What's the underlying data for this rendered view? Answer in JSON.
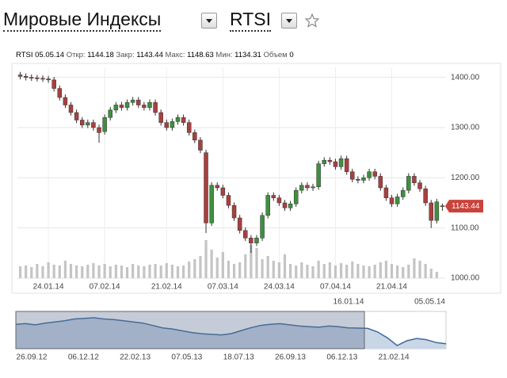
{
  "header": {
    "group": "Мировые Индексы",
    "symbol": "RTSI"
  },
  "chart_data": {
    "type": "candlestick",
    "info": {
      "symbol": "RTSI",
      "date": "05.05.14",
      "open_label": "Откр:",
      "close_label": "Закр:",
      "high_label": "Макс:",
      "low_label": "Мин:",
      "volume_label": "Объем"
    },
    "categories": [
      null,
      null,
      null,
      null,
      null,
      "24.01.14",
      null,
      null,
      null,
      null,
      null,
      null,
      null,
      null,
      null,
      "07.02.14",
      null,
      null,
      null,
      null,
      null,
      null,
      null,
      null,
      null,
      null,
      "21.02.14",
      null,
      null,
      null,
      null,
      null,
      null,
      null,
      null,
      null,
      "07.03.14",
      null,
      null,
      null,
      null,
      null,
      null,
      null,
      null,
      null,
      "24.03.14",
      null,
      null,
      null,
      null,
      null,
      null,
      null,
      null,
      null,
      "07.04.14",
      null,
      null,
      null,
      null,
      null,
      null,
      null,
      null,
      null,
      "21.04.14",
      null,
      null,
      null,
      null,
      null,
      null,
      null,
      null,
      null
    ],
    "open": [
      1405,
      1402,
      1400,
      1399,
      1398,
      1397,
      1395,
      1378,
      1360,
      1345,
      1330,
      1315,
      1305,
      1310,
      1300,
      1292,
      1320,
      1335,
      1345,
      1340,
      1350,
      1355,
      1345,
      1340,
      1350,
      1330,
      1310,
      1300,
      1312,
      1320,
      1310,
      1290,
      1275,
      1250,
      1110,
      1185,
      1180,
      1165,
      1145,
      1120,
      1095,
      1080,
      1070,
      1080,
      1125,
      1165,
      1160,
      1150,
      1140,
      1148,
      1175,
      1185,
      1180,
      1182,
      1228,
      1235,
      1232,
      1222,
      1238,
      1212,
      1197,
      1195,
      1200,
      1212,
      1203,
      1180,
      1160,
      1148,
      1162,
      1175,
      1203,
      1190,
      1178,
      1150,
      1115,
      1144.18
    ],
    "high": [
      1411,
      1408,
      1406,
      1405,
      1404,
      1403,
      1401,
      1384,
      1366,
      1351,
      1336,
      1321,
      1316,
      1316,
      1306,
      1326,
      1341,
      1351,
      1351,
      1356,
      1361,
      1361,
      1351,
      1356,
      1356,
      1336,
      1316,
      1318,
      1326,
      1326,
      1316,
      1296,
      1281,
      1256,
      1191,
      1191,
      1186,
      1171,
      1151,
      1126,
      1101,
      1086,
      1086,
      1131,
      1171,
      1171,
      1166,
      1156,
      1154,
      1181,
      1191,
      1191,
      1188,
      1234,
      1241,
      1241,
      1238,
      1244,
      1244,
      1218,
      1203,
      1206,
      1218,
      1218,
      1209,
      1186,
      1166,
      1168,
      1181,
      1209,
      1209,
      1196,
      1184,
      1156,
      1158,
      1148.63
    ],
    "low": [
      1396,
      1394,
      1393,
      1392,
      1391,
      1389,
      1372,
      1354,
      1339,
      1324,
      1309,
      1299,
      1299,
      1294,
      1270,
      1286,
      1314,
      1329,
      1334,
      1334,
      1344,
      1339,
      1334,
      1334,
      1324,
      1304,
      1294,
      1294,
      1306,
      1304,
      1284,
      1269,
      1249,
      1090,
      1104,
      1174,
      1159,
      1139,
      1114,
      1089,
      1074,
      1050,
      1064,
      1074,
      1119,
      1154,
      1144,
      1134,
      1134,
      1142,
      1169,
      1174,
      1174,
      1176,
      1222,
      1226,
      1216,
      1216,
      1206,
      1191,
      1189,
      1189,
      1194,
      1197,
      1174,
      1154,
      1142,
      1142,
      1156,
      1169,
      1184,
      1172,
      1144,
      1100,
      1109,
      1134.31
    ],
    "close": [
      1402,
      1400,
      1399,
      1398,
      1397,
      1395,
      1378,
      1360,
      1345,
      1330,
      1315,
      1305,
      1310,
      1300,
      1290,
      1320,
      1335,
      1345,
      1340,
      1350,
      1355,
      1345,
      1340,
      1350,
      1330,
      1310,
      1300,
      1312,
      1320,
      1310,
      1290,
      1275,
      1255,
      1110,
      1185,
      1180,
      1165,
      1145,
      1120,
      1095,
      1080,
      1070,
      1080,
      1125,
      1165,
      1160,
      1150,
      1140,
      1148,
      1175,
      1185,
      1180,
      1182,
      1228,
      1235,
      1232,
      1222,
      1238,
      1212,
      1197,
      1195,
      1200,
      1212,
      1203,
      1180,
      1160,
      1148,
      1162,
      1175,
      1203,
      1190,
      1178,
      1150,
      1115,
      1152,
      1143.44
    ],
    "volume": [
      15,
      16,
      14,
      18,
      15,
      20,
      17,
      16,
      22,
      18,
      16,
      15,
      17,
      19,
      16,
      18,
      15,
      17,
      16,
      14,
      18,
      16,
      15,
      17,
      18,
      16,
      19,
      17,
      15,
      16,
      21,
      24,
      28,
      48,
      36,
      26,
      33,
      22,
      18,
      20,
      30,
      42,
      38,
      24,
      28,
      22,
      20,
      30,
      18,
      16,
      20,
      17,
      15,
      22,
      18,
      20,
      16,
      19,
      17,
      21,
      18,
      16,
      15,
      17,
      20,
      22,
      18,
      16,
      14,
      17,
      25,
      22,
      18,
      12,
      8,
      0
    ],
    "up_color": "#3f8f3f",
    "down_color": "#a8403f",
    "ylim": [
      1000,
      1420
    ],
    "yticks": [
      {
        "value": 1000,
        "label": "1000.00"
      },
      {
        "value": 1100,
        "label": "1100.00"
      },
      {
        "value": 1200,
        "label": "1200.00"
      },
      {
        "value": 1300,
        "label": "1300.00"
      },
      {
        "value": 1400,
        "label": "1400.00"
      }
    ],
    "grid": true,
    "navigator": {
      "values": [
        1460,
        1470,
        1450,
        1480,
        1500,
        1520,
        1550,
        1560,
        1570,
        1550,
        1540,
        1520,
        1500,
        1480,
        1440,
        1400,
        1380,
        1350,
        1320,
        1300,
        1290,
        1280,
        1300,
        1350,
        1400,
        1440,
        1460,
        1470,
        1450,
        1430,
        1420,
        1410,
        1430,
        1420,
        1400,
        1395,
        1390,
        1330,
        1230,
        1100,
        1180,
        1220,
        1200,
        1150,
        1130
      ],
      "labels": [
        "26.09.12",
        "06.12.12",
        "22.02.13",
        "07.05.13",
        "18.07.13",
        "26.09.13",
        "06.12.13",
        "21.02.14"
      ],
      "range_start": "16.01.14",
      "range_end": "05.05.14",
      "color": "#3e6a9c"
    }
  }
}
